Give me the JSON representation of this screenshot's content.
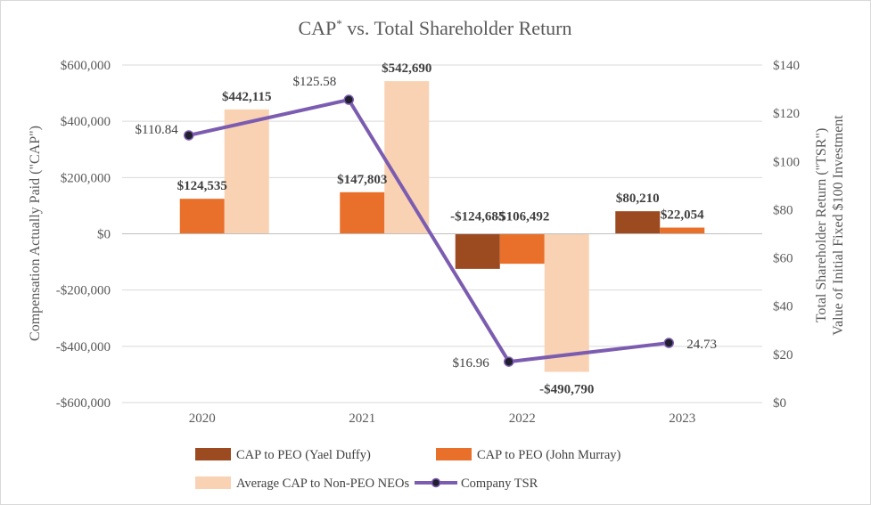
{
  "chart_data": {
    "type": "bar+line",
    "title": "CAP",
    "title_superscript": "*",
    "title_rest": " vs. Total Shareholder Return",
    "categories": [
      "2020",
      "2021",
      "2022",
      "2023"
    ],
    "ylabel_left": "Compensation Actually Paid (\"CAP\")",
    "ylabel_right_line1": "Total Shareholder Return (\"TSR\")",
    "ylabel_right_line2": "Value of Initial Fixed $100 Investment",
    "y_left_range": [
      -600000,
      600000
    ],
    "y_left_ticks": [
      600000,
      400000,
      200000,
      0,
      -200000,
      -400000,
      -600000
    ],
    "y_left_tick_labels": [
      "$600,000",
      "$400,000",
      "$200,000",
      "$0",
      "-$200,000",
      "-$400,000",
      "-$600,000"
    ],
    "y_right_range": [
      0,
      140
    ],
    "y_right_ticks": [
      140,
      120,
      100,
      80,
      60,
      40,
      20,
      0
    ],
    "y_right_tick_labels": [
      "$140",
      "$120",
      "$100",
      "$80",
      "$60",
      "$40",
      "$20",
      "$0"
    ],
    "gridlines": true,
    "legend_position": "bottom",
    "series": [
      {
        "name": "CAP to PEO (Yael Duffy)",
        "type": "bar",
        "axis": "left",
        "color": "#9c4a1f",
        "values": [
          null,
          null,
          -124685,
          80210
        ],
        "labels": [
          "",
          "",
          "-$124,685",
          "$80,210"
        ]
      },
      {
        "name": "CAP to PEO (John Murray)",
        "type": "bar",
        "axis": "left",
        "color": "#e8702a",
        "values": [
          124535,
          147803,
          -106492,
          22054
        ],
        "labels": [
          "$124,535",
          "$147,803",
          "-$106,492",
          "$22,054"
        ]
      },
      {
        "name": "Average CAP to Non-PEO NEOs",
        "type": "bar",
        "axis": "left",
        "color": "#f9d2b3",
        "values": [
          442115,
          542690,
          -490790,
          null
        ],
        "labels": [
          "$442,115",
          "$542,690",
          "-$490,790",
          ""
        ]
      },
      {
        "name": "Company TSR",
        "type": "line",
        "axis": "right",
        "color": "#7c5cb0",
        "marker_color": "#1f1f2e",
        "values": [
          110.84,
          125.58,
          16.96,
          24.73
        ],
        "labels": [
          "$110.84",
          "$125.58",
          "$16.96",
          "24.73"
        ]
      }
    ]
  }
}
